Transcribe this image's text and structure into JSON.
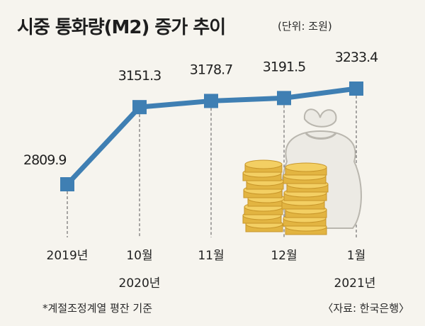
{
  "header": {
    "title": "시중 통화량(M2) 증가 추이",
    "unit": "(단위: 조원)"
  },
  "footer": {
    "note": "*계절조정계열 평잔 기준",
    "source": "〈자료: 한국은행〉"
  },
  "colors": {
    "line": "#3f7fb3",
    "marker": "#3f7fb3",
    "background": "#f6f4ee"
  },
  "chart_data": {
    "type": "line",
    "title": "시중 통화량(M2) 증가 추이",
    "xlabel": "",
    "ylabel": "",
    "categories": [
      "2019년",
      "10월",
      "11월",
      "12월",
      "1월"
    ],
    "category_sublabels": [
      "",
      "2020년",
      "",
      "",
      "2021년"
    ],
    "series": [
      {
        "values": [
          2809.9,
          3151.3,
          3178.7,
          3191.5,
          3233.4
        ]
      }
    ],
    "value_labels": [
      "2809.9",
      "3151.3",
      "3178.7",
      "3191.5",
      "3233.4"
    ],
    "ylim": [
      2780,
      3250
    ],
    "grid": false,
    "legend": "none",
    "illustration": "money-bag-and-coins"
  }
}
